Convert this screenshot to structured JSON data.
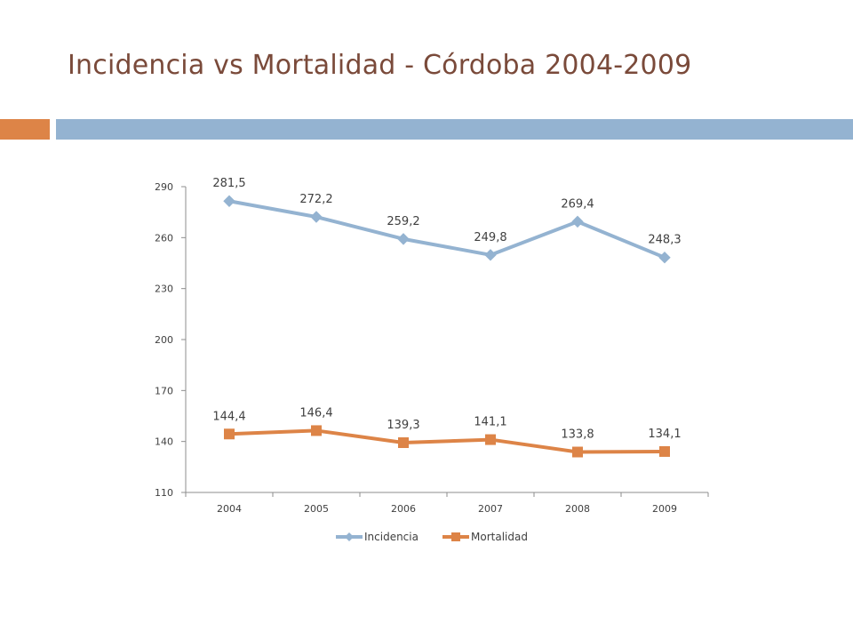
{
  "slide": {
    "title": "Incidencia vs Mortalidad - Córdoba 2004-2009",
    "accent_colors": {
      "orange": "#dd8447",
      "blue": "#94b3d1",
      "title": "#7a4a3a"
    }
  },
  "chart_data": {
    "type": "line",
    "title": "",
    "xlabel": "",
    "ylabel": "",
    "categories": [
      "2004",
      "2005",
      "2006",
      "2007",
      "2008",
      "2009"
    ],
    "ylim": [
      110,
      290
    ],
    "yticks": [
      110,
      140,
      170,
      200,
      230,
      260,
      290
    ],
    "grid": false,
    "legend_position": "bottom",
    "series": [
      {
        "name": "Incidencia",
        "values": [
          281.5,
          272.2,
          259.2,
          249.8,
          269.4,
          248.3
        ],
        "labels": [
          "281,5",
          "272,2",
          "259,2",
          "249,8",
          "269,4",
          "248,3"
        ],
        "color": "#94b3d1",
        "marker": "diamond"
      },
      {
        "name": "Mortalidad",
        "values": [
          144.4,
          146.4,
          139.3,
          141.1,
          133.8,
          134.1
        ],
        "labels": [
          "144,4",
          "146,4",
          "139,3",
          "141,1",
          "133,8",
          "134,1"
        ],
        "color": "#dd8447",
        "marker": "square"
      }
    ]
  }
}
